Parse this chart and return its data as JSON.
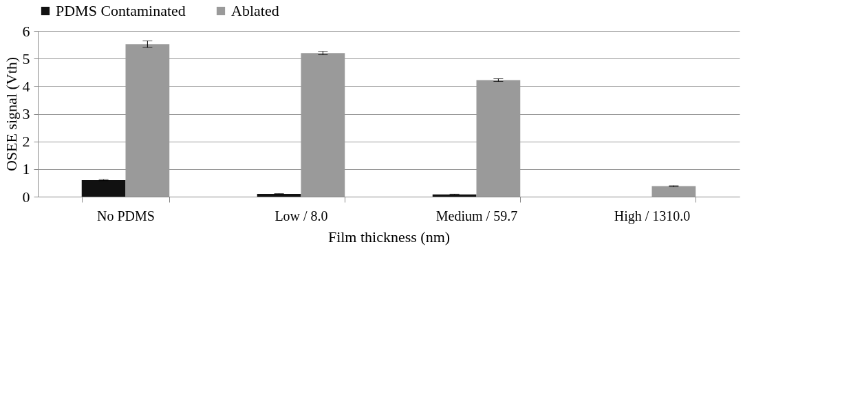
{
  "chart_data": {
    "type": "bar",
    "xlabel": "Film thickness (nm)",
    "ylabel": "OSEE signal (Vth)",
    "categories": [
      "No PDMS",
      "Low / 8.0",
      "Medium / 59.7",
      "High / 1310.0"
    ],
    "series": [
      {
        "name": "PDMS Contaminated",
        "color": "#111111",
        "values": [
          0.6,
          0.1,
          0.08,
          0
        ],
        "errors": [
          0.02,
          0.01,
          0.01,
          null
        ]
      },
      {
        "name": "Ablated",
        "color": "#9a9a9a",
        "values": [
          5.52,
          5.2,
          4.22,
          0.38
        ],
        "errors": [
          0.12,
          0.06,
          0.05,
          0.02
        ]
      }
    ],
    "ylim": [
      0,
      6
    ],
    "yticks": [
      0,
      1,
      2,
      3,
      4,
      5,
      6
    ],
    "grid": "y",
    "legend": "top"
  }
}
